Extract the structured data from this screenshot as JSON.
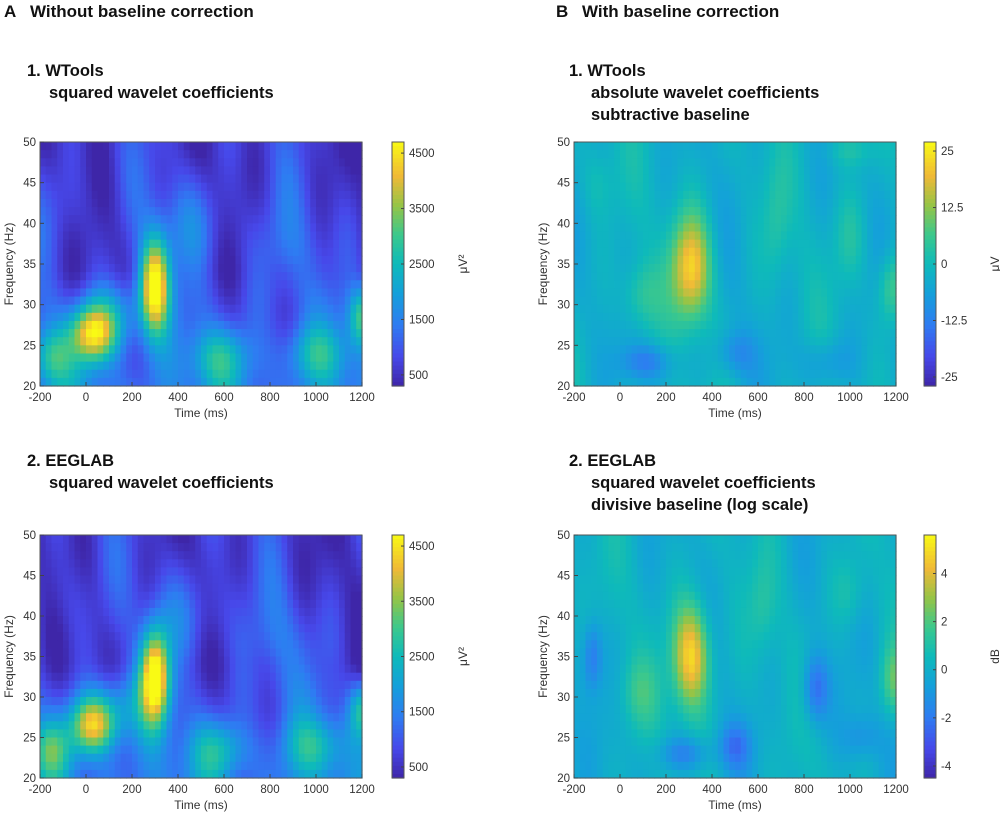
{
  "columns": {
    "a": {
      "letter": "A",
      "title": "Without baseline correction"
    },
    "b": {
      "letter": "B",
      "title": "With baseline correction"
    }
  },
  "colors": {
    "colormap": "parula"
  },
  "chart_data": [
    {
      "id": "a1",
      "type": "heatmap",
      "title": "1. WTools",
      "subtitle": [
        "squared wavelet coefficients"
      ],
      "xlabel": "Time (ms)",
      "ylabel": "Frequency (Hz)",
      "x_ticks": [
        "-200",
        "0",
        "200",
        "400",
        "600",
        "800",
        "1000",
        "1200"
      ],
      "y_ticks": [
        "20",
        "25",
        "30",
        "35",
        "40",
        "45",
        "50"
      ],
      "xlim": [
        -200,
        1200
      ],
      "ylim": [
        20,
        50
      ],
      "colorbar": {
        "ticks": [
          "500",
          "1500",
          "2500",
          "3500",
          "4500"
        ],
        "tick_values": [
          500,
          1500,
          2500,
          3500,
          4500
        ],
        "range": [
          300,
          4700
        ],
        "label": "μV²"
      },
      "baseline": 0.08,
      "bscale": 0.9,
      "blobs": [
        {
          "t": 300,
          "f": 32.5,
          "st": 45,
          "sf": 4.0,
          "a": 0.95
        },
        {
          "t": 30,
          "f": 26.5,
          "st": 70,
          "sf": 2.5,
          "a": 0.75
        },
        {
          "t": -150,
          "f": 23.5,
          "st": 60,
          "sf": 2.5,
          "a": 0.35
        },
        {
          "t": 150,
          "f": 29,
          "st": 90,
          "sf": 3,
          "a": 0.25
        },
        {
          "t": 580,
          "f": 23.5,
          "st": 90,
          "sf": 2.5,
          "a": 0.3
        },
        {
          "t": 1000,
          "f": 24,
          "st": 100,
          "sf": 2.5,
          "a": 0.28
        },
        {
          "t": 1200,
          "f": 28.5,
          "st": 40,
          "sf": 2.5,
          "a": 0.45
        },
        {
          "t": 450,
          "f": 40,
          "st": 120,
          "sf": 4,
          "a": 0.15
        },
        {
          "t": 850,
          "f": 36,
          "st": 120,
          "sf": 5,
          "a": 0.12
        },
        {
          "t": -80,
          "f": 42,
          "st": 80,
          "sf": 4,
          "a": 0.08
        }
      ]
    },
    {
      "id": "a2",
      "type": "heatmap",
      "title": "2. EEGLAB",
      "subtitle": [
        "squared wavelet coefficients"
      ],
      "xlabel": "Time (ms)",
      "ylabel": "Frequency (Hz)",
      "x_ticks": [
        "-200",
        "0",
        "200",
        "400",
        "600",
        "800",
        "1000",
        "1200"
      ],
      "y_ticks": [
        "20",
        "25",
        "30",
        "35",
        "40",
        "45",
        "50"
      ],
      "xlim": [
        -200,
        1200
      ],
      "ylim": [
        20,
        50
      ],
      "colorbar": {
        "ticks": [
          "500",
          "1500",
          "2500",
          "3500",
          "4500"
        ],
        "tick_values": [
          500,
          1500,
          2500,
          3500,
          4500
        ],
        "range": [
          300,
          4700
        ],
        "label": "μV²"
      },
      "baseline": 0.08,
      "bscale": 0.9,
      "blobs": [
        {
          "t": 300,
          "f": 32.5,
          "st": 45,
          "sf": 4.0,
          "a": 0.95
        },
        {
          "t": 30,
          "f": 26.5,
          "st": 70,
          "sf": 2.5,
          "a": 0.72
        },
        {
          "t": -150,
          "f": 23.5,
          "st": 60,
          "sf": 2.5,
          "a": 0.35
        },
        {
          "t": 150,
          "f": 29,
          "st": 90,
          "sf": 3,
          "a": 0.25
        },
        {
          "t": 580,
          "f": 23.5,
          "st": 90,
          "sf": 2.5,
          "a": 0.3
        },
        {
          "t": 1000,
          "f": 24,
          "st": 100,
          "sf": 2.5,
          "a": 0.28
        },
        {
          "t": 1200,
          "f": 28.5,
          "st": 40,
          "sf": 2.5,
          "a": 0.45
        },
        {
          "t": 450,
          "f": 40,
          "st": 120,
          "sf": 4,
          "a": 0.15
        },
        {
          "t": 850,
          "f": 36,
          "st": 120,
          "sf": 5,
          "a": 0.12
        },
        {
          "t": -80,
          "f": 42,
          "st": 80,
          "sf": 4,
          "a": 0.08
        }
      ]
    },
    {
      "id": "b1",
      "type": "heatmap",
      "title": "1. WTools",
      "subtitle": [
        "absolute wavelet coefficients",
        "subtractive baseline"
      ],
      "xlabel": "Time (ms)",
      "ylabel": "Frequency (Hz)",
      "x_ticks": [
        "-200",
        "0",
        "200",
        "400",
        "600",
        "800",
        "1000",
        "1200"
      ],
      "y_ticks": [
        "20",
        "25",
        "30",
        "35",
        "40",
        "45",
        "50"
      ],
      "xlim": [
        -200,
        1200
      ],
      "ylim": [
        20,
        50
      ],
      "colorbar": {
        "ticks": [
          "25",
          "12.5",
          "0",
          "-12.5",
          "-25"
        ],
        "tick_values": [
          25,
          12.5,
          0,
          -12.5,
          -25
        ],
        "range": [
          -27,
          27
        ],
        "label": "μV"
      },
      "baseline": 0.45,
      "bscale": 0.5,
      "blobs": [
        {
          "t": 310,
          "f": 34.5,
          "st": 60,
          "sf": 4.5,
          "a": 0.45
        },
        {
          "t": 90,
          "f": 31,
          "st": 60,
          "sf": 3,
          "a": 0.15
        },
        {
          "t": 1180,
          "f": 32,
          "st": 40,
          "sf": 3,
          "a": 0.2
        },
        {
          "t": 120,
          "f": 23,
          "st": 80,
          "sf": 1.5,
          "a": -0.18
        },
        {
          "t": 500,
          "f": 24,
          "st": 60,
          "sf": 2,
          "a": -0.15
        },
        {
          "t": 900,
          "f": 23,
          "st": 80,
          "sf": 2,
          "a": -0.12
        },
        {
          "t": 1000,
          "f": 38,
          "st": 50,
          "sf": 4,
          "a": 0.1
        },
        {
          "t": 680,
          "f": 40,
          "st": 40,
          "sf": 5,
          "a": 0.08
        },
        {
          "t": -100,
          "f": 45,
          "st": 50,
          "sf": 3,
          "a": 0.08
        },
        {
          "t": 1000,
          "f": 49,
          "st": 60,
          "sf": 1.5,
          "a": 0.12
        }
      ]
    },
    {
      "id": "b2",
      "type": "heatmap",
      "title": "2. EEGLAB",
      "subtitle": [
        "squared wavelet coefficients",
        "divisive baseline (log scale)"
      ],
      "xlabel": "Time (ms)",
      "ylabel": "Frequency (Hz)",
      "x_ticks": [
        "-200",
        "0",
        "200",
        "400",
        "600",
        "800",
        "1000",
        "1200"
      ],
      "y_ticks": [
        "20",
        "25",
        "30",
        "35",
        "40",
        "45",
        "50"
      ],
      "xlim": [
        -200,
        1200
      ],
      "ylim": [
        20,
        50
      ],
      "colorbar": {
        "ticks": [
          "4",
          "2",
          "0",
          "-2",
          "-4"
        ],
        "tick_values": [
          4,
          2,
          0,
          -2,
          -4
        ],
        "range": [
          -4.5,
          5.6
        ],
        "label": "dB"
      },
      "baseline": 0.45,
      "bscale": 0.5,
      "blobs": [
        {
          "t": 310,
          "f": 35,
          "st": 55,
          "sf": 4.5,
          "a": 0.5
        },
        {
          "t": 80,
          "f": 30.5,
          "st": 60,
          "sf": 3,
          "a": 0.12
        },
        {
          "t": 1190,
          "f": 32,
          "st": 40,
          "sf": 3,
          "a": 0.2
        },
        {
          "t": 850,
          "f": 31,
          "st": 40,
          "sf": 3,
          "a": -0.25
        },
        {
          "t": -120,
          "f": 35,
          "st": 30,
          "sf": 3,
          "a": -0.2
        },
        {
          "t": 280,
          "f": 23,
          "st": 80,
          "sf": 1.5,
          "a": -0.18
        },
        {
          "t": 500,
          "f": 24,
          "st": 50,
          "sf": 2,
          "a": -0.18
        },
        {
          "t": 1050,
          "f": 25,
          "st": 60,
          "sf": 2,
          "a": -0.12
        },
        {
          "t": 1000,
          "f": 43,
          "st": 50,
          "sf": 3,
          "a": 0.1
        },
        {
          "t": 620,
          "f": 41,
          "st": 40,
          "sf": 4,
          "a": 0.08
        }
      ]
    }
  ]
}
